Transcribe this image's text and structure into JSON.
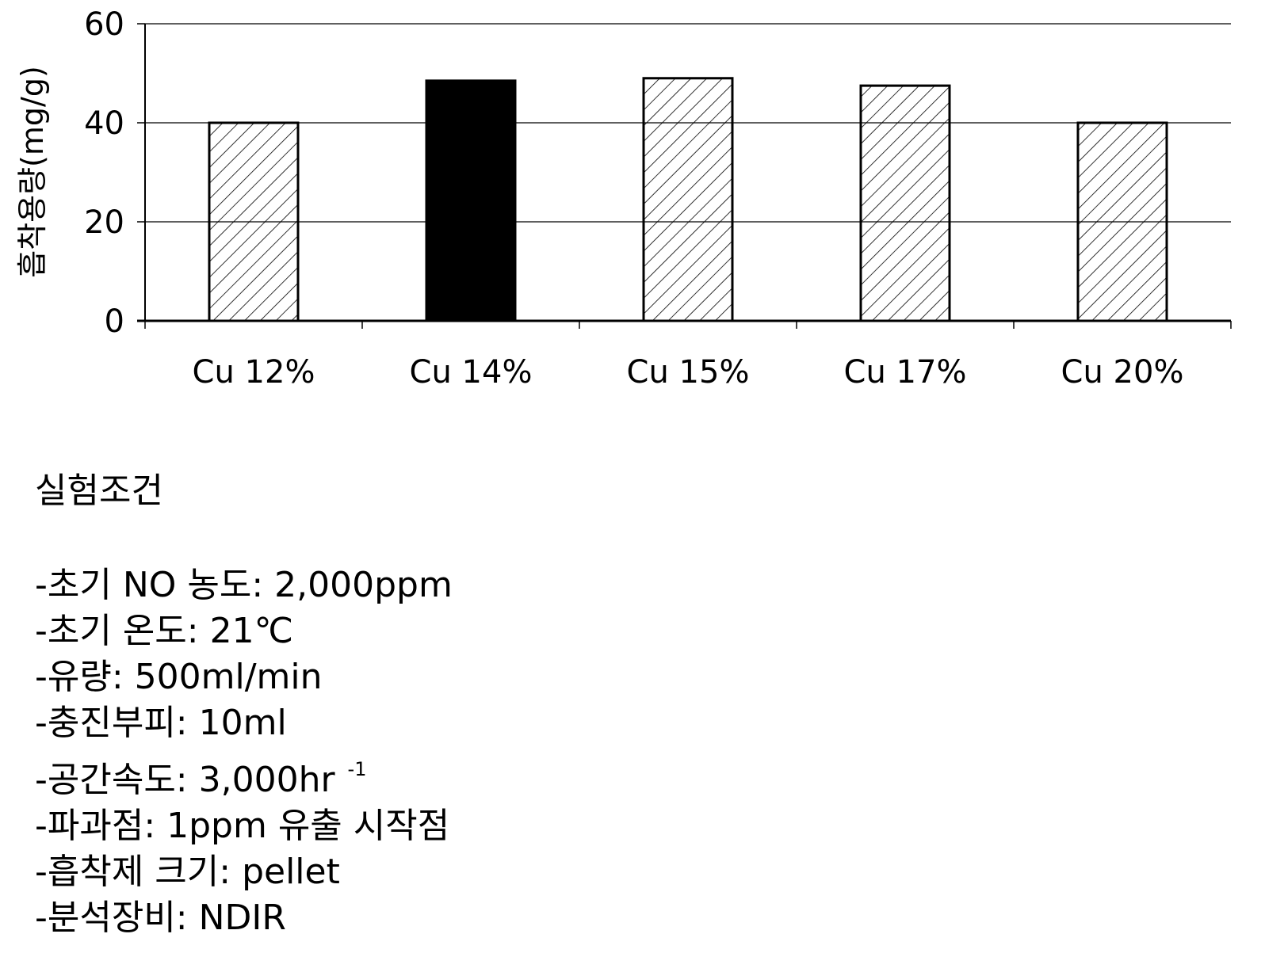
{
  "chart_data": {
    "type": "bar",
    "title": "",
    "xlabel": "",
    "ylabel": "흡착용량(mg/g)",
    "categories": [
      "Cu 12%",
      "Cu 14%",
      "Cu 15%",
      "Cu 17%",
      "Cu 20%"
    ],
    "values": [
      40,
      48.5,
      49,
      47.5,
      40
    ],
    "ylim": [
      0,
      60
    ],
    "yticks": [
      "0",
      "20",
      "40",
      "60"
    ],
    "grid": true,
    "bar_styles": [
      "hatched",
      "solid",
      "hatched",
      "hatched",
      "hatched"
    ],
    "colors": {
      "bar_solid": "#000000",
      "hatch": "#000000",
      "background": "#ffffff"
    }
  },
  "conditions": {
    "title": "실험조건",
    "items": [
      {
        "text": "-초기 NO 농도: 2,000ppm"
      },
      {
        "text": "-초기 온도: 21℃"
      },
      {
        "text": "-유량: 500ml/min"
      },
      {
        "text": "-충진부피: 10ml"
      },
      {
        "text": "-공간속도: 3,000hr ",
        "sup": "-1"
      },
      {
        "text": "-파과점: 1ppm 유출 시작점"
      },
      {
        "text": "-흡착제 크기: pellet"
      },
      {
        "text": "-분석장비: NDIR"
      }
    ]
  }
}
